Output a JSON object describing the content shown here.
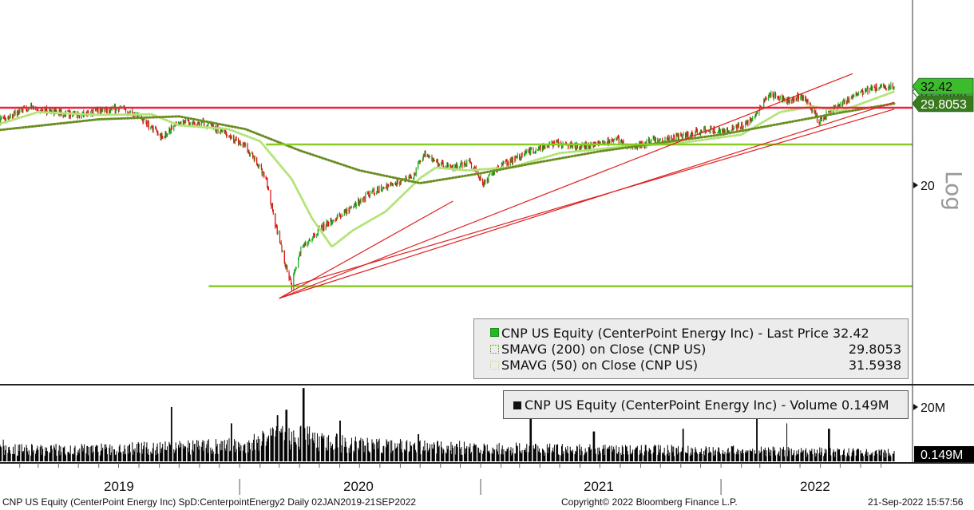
{
  "chart_data": [
    {
      "type": "candlestick",
      "title": "CNP US Equity (CenterPoint Energy Inc)",
      "scale": "log",
      "scale_label": "Log",
      "y_ticks": [
        20
      ],
      "y_tick_labels": [
        "20"
      ],
      "series": [
        {
          "name": "CNP US Equity (CenterPoint Energy Inc) - Last Price",
          "value": 32.42,
          "value_label": "32.42",
          "color": "#22bb22"
        },
        {
          "name": "SMAVG (200)  on Close (CNP US)",
          "value": 29.8053,
          "value_label": "29.8053",
          "color": "#6b8e23"
        },
        {
          "name": "SMAVG (50)  on Close (CNP US)",
          "value": 31.5938,
          "value_label": "31.5938",
          "color": "#b5e37a"
        }
      ],
      "price_path": [
        [
          "2019-01-02",
          27.5
        ],
        [
          "2019-02-15",
          29.2
        ],
        [
          "2019-04-01",
          28.6
        ],
        [
          "2019-05-01",
          28.2
        ],
        [
          "2019-06-10",
          29.0
        ],
        [
          "2019-07-10",
          29.0
        ],
        [
          "2019-08-01",
          28.0
        ],
        [
          "2019-09-05",
          25.2
        ],
        [
          "2019-10-01",
          27.4
        ],
        [
          "2019-11-05",
          27.1
        ],
        [
          "2019-12-01",
          26.2
        ],
        [
          "2020-01-10",
          24.2
        ],
        [
          "2020-02-10",
          20.7
        ],
        [
          "2020-02-24",
          16.6
        ],
        [
          "2020-03-10",
          13.6
        ],
        [
          "2020-03-20",
          12.2
        ],
        [
          "2020-04-01",
          14.5
        ],
        [
          "2020-05-01",
          16.1
        ],
        [
          "2020-06-01",
          17.2
        ],
        [
          "2020-07-01",
          18.5
        ],
        [
          "2020-07-20",
          19.3
        ],
        [
          "2020-08-20",
          20.0
        ],
        [
          "2020-09-20",
          20.8
        ],
        [
          "2020-10-07",
          23.4
        ],
        [
          "2020-10-25",
          22.3
        ],
        [
          "2020-11-20",
          21.8
        ],
        [
          "2020-12-15",
          22.4
        ],
        [
          "2021-01-05",
          20.2
        ],
        [
          "2021-01-25",
          21.7
        ],
        [
          "2021-03-10",
          23.4
        ],
        [
          "2021-04-25",
          24.7
        ],
        [
          "2021-05-20",
          24.2
        ],
        [
          "2021-06-25",
          24.3
        ],
        [
          "2021-07-25",
          25.1
        ],
        [
          "2021-08-20",
          24.0
        ],
        [
          "2021-09-20",
          24.9
        ],
        [
          "2021-11-01",
          25.3
        ],
        [
          "2021-12-10",
          26.3
        ],
        [
          "2022-01-10",
          26.1
        ],
        [
          "2022-02-15",
          27.3
        ],
        [
          "2022-03-15",
          31.4
        ],
        [
          "2022-04-10",
          30.2
        ],
        [
          "2022-05-01",
          31.0
        ],
        [
          "2022-05-15",
          29.8
        ],
        [
          "2022-05-30",
          27.3
        ],
        [
          "2022-06-20",
          28.9
        ],
        [
          "2022-07-20",
          30.7
        ],
        [
          "2022-08-20",
          32.2
        ],
        [
          "2022-09-21",
          32.42
        ]
      ],
      "sma200_path": [
        [
          "2019-01-02",
          26.2
        ],
        [
          "2019-06-01",
          27.6
        ],
        [
          "2019-10-01",
          28.0
        ],
        [
          "2020-01-10",
          26.3
        ],
        [
          "2020-04-01",
          23.7
        ],
        [
          "2020-07-01",
          21.5
        ],
        [
          "2020-10-01",
          20.2
        ],
        [
          "2021-01-01",
          21.2
        ],
        [
          "2021-04-01",
          22.4
        ],
        [
          "2021-07-01",
          23.6
        ],
        [
          "2021-10-01",
          24.6
        ],
        [
          "2022-01-01",
          25.6
        ],
        [
          "2022-04-01",
          27.0
        ],
        [
          "2022-07-01",
          28.5
        ],
        [
          "2022-09-21",
          29.8053
        ]
      ],
      "sma50_path": [
        [
          "2019-01-02",
          27.0
        ],
        [
          "2019-03-01",
          28.6
        ],
        [
          "2019-06-01",
          28.2
        ],
        [
          "2019-08-20",
          28.3
        ],
        [
          "2019-10-01",
          26.8
        ],
        [
          "2019-12-15",
          26.3
        ],
        [
          "2020-02-01",
          24.8
        ],
        [
          "2020-03-20",
          20.6
        ],
        [
          "2020-04-20",
          17.0
        ],
        [
          "2020-05-20",
          14.8
        ],
        [
          "2020-06-20",
          16.0
        ],
        [
          "2020-08-10",
          17.6
        ],
        [
          "2020-10-01",
          20.7
        ],
        [
          "2020-10-25",
          21.8
        ],
        [
          "2020-12-10",
          21.5
        ],
        [
          "2021-02-15",
          21.8
        ],
        [
          "2021-05-01",
          23.4
        ],
        [
          "2021-08-01",
          24.1
        ],
        [
          "2021-11-01",
          24.6
        ],
        [
          "2022-02-01",
          25.6
        ],
        [
          "2022-04-01",
          28.6
        ],
        [
          "2022-05-20",
          29.4
        ],
        [
          "2022-07-01",
          28.7
        ],
        [
          "2022-09-21",
          31.5938
        ]
      ],
      "horizontal_lines": [
        {
          "value": 29.2,
          "color": "#e8263f",
          "from": "2019-01-02"
        },
        {
          "value": 24.4,
          "color": "#88cc22",
          "from": "2020-02-10"
        },
        {
          "value": 12.2,
          "color": "#88cc22",
          "from": "2019-11-15"
        }
      ],
      "trend_lines": [
        {
          "from": [
            "2020-03-01",
            11.5
          ],
          "to": [
            "2020-10-15",
            19.5
          ],
          "extend_to": [
            "2020-11-20",
            18.5
          ]
        },
        {
          "from": [
            "2020-03-01",
            11.5
          ],
          "to": [
            "2022-09-21",
            32.0
          ],
          "extend_to": [
            "2022-07-20",
            34.5
          ]
        },
        {
          "from": [
            "2020-03-01",
            11.5
          ],
          "to": [
            "2022-09-21",
            30.0
          ]
        },
        {
          "from": [
            "2020-03-20",
            12.2
          ],
          "to": [
            "2022-09-21",
            29.0
          ]
        }
      ],
      "x_labels": [
        "2019",
        "2020",
        "2021",
        "2022"
      ]
    },
    {
      "type": "bar",
      "title": "CNP US Equity (CenterPoint Energy Inc) - Volume",
      "y_ticks": [
        "20M"
      ],
      "last_value_label": "0.149M",
      "legend_text": "CNP US Equity (CenterPoint Energy Inc) - Volume 0.149M",
      "volume_profile_millions": [
        [
          "2019-01-02",
          4.3
        ],
        [
          "2019-06-01",
          4.6
        ],
        [
          "2019-10-01",
          5.4
        ],
        [
          "2020-01-01",
          6.1
        ],
        [
          "2020-03-01",
          9.5
        ],
        [
          "2020-04-15",
          9.0
        ],
        [
          "2020-07-01",
          6.2
        ],
        [
          "2021-01-01",
          5.0
        ],
        [
          "2021-06-01",
          4.4
        ],
        [
          "2022-01-01",
          4.1
        ],
        [
          "2022-09-21",
          3.2
        ]
      ],
      "volume_spikes_millions": [
        [
          "2019-01-06",
          8
        ],
        [
          "2019-09-20",
          20
        ],
        [
          "2019-12-20",
          14
        ],
        [
          "2020-02-28",
          17
        ],
        [
          "2020-03-12",
          19
        ],
        [
          "2020-04-07",
          27
        ],
        [
          "2020-06-01",
          15
        ],
        [
          "2020-09-28",
          10
        ],
        [
          "2021-03-18",
          17
        ],
        [
          "2021-06-22",
          11
        ],
        [
          "2021-11-05",
          12
        ],
        [
          "2022-02-25",
          19
        ],
        [
          "2022-04-10",
          14
        ],
        [
          "2022-06-14",
          12
        ]
      ]
    }
  ],
  "legend": {
    "rows": [
      "CNP US Equity (CenterPoint Energy Inc) - Last Price 32.42",
      "SMAVG (200)  on Close (CNP US)",
      "SMAVG (50)  on Close (CNP US)"
    ],
    "values": [
      "",
      "29.8053",
      "31.5938"
    ]
  },
  "footer": {
    "left": "CNP US Equity (CenterPoint Energy Inc) SpD:CenterpointEnergy2  Daily 02JAN2019-21SEP2022",
    "center": "Copyright© 2022 Bloomberg Finance L.P.",
    "right": "21-Sep-2022 15:57:56"
  },
  "colors": {
    "up": "#22aa22",
    "down": "#dd1111",
    "sma200": "#6b8e23",
    "sma50": "#b5e37a",
    "resistance": "#e8263f",
    "support": "#88cc22",
    "trend": "#e02020",
    "last_tag": "#3cbc2c"
  }
}
